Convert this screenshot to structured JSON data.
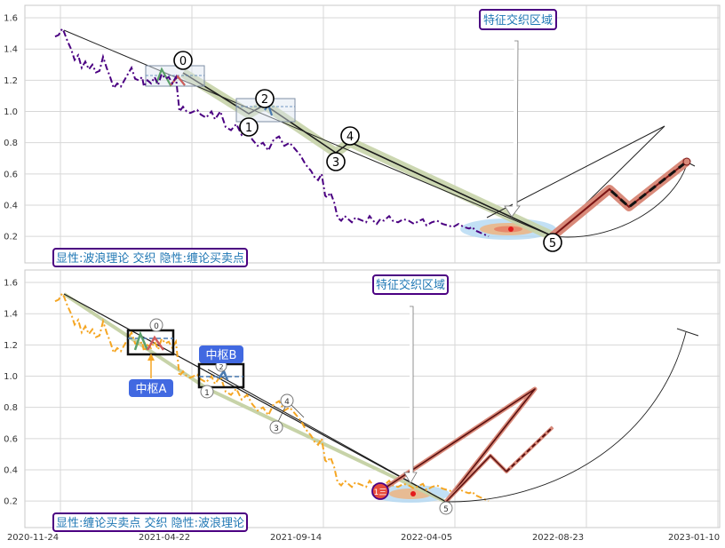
{
  "chart_data": [
    {
      "type": "line",
      "panel": "top",
      "x_ticks": [
        "2020-11-24",
        "2021-04-22",
        "2021-09-14",
        "2022-04-05",
        "2022-08-23",
        "2023-01-10"
      ],
      "y_ticks": [
        "0.2",
        "0.4",
        "0.6",
        "0.8",
        "1.0",
        "1.2",
        "1.4",
        "1.6"
      ],
      "ylim": [
        0.03,
        1.68
      ],
      "grid": true,
      "series": [
        {
          "color": "#4b0082",
          "style": "dash-dot",
          "x": [
            0,
            4,
            8,
            10,
            14,
            18,
            22,
            26,
            30,
            34,
            38,
            42,
            46,
            50,
            54,
            58,
            62,
            66,
            70,
            74,
            78,
            82,
            86,
            90,
            94,
            98,
            100,
            104,
            108,
            112,
            116,
            120,
            124,
            128,
            132,
            136,
            140,
            144,
            148,
            152,
            156,
            160,
            164,
            170,
            176,
            180,
            186,
            192,
            198,
            204,
            210,
            216,
            222,
            228,
            234,
            240,
            246,
            252,
            258,
            264,
            270,
            276,
            282,
            288,
            292,
            296,
            300,
            304,
            306,
            310,
            314,
            318,
            322,
            326,
            330,
            334,
            338,
            342,
            346,
            350,
            354,
            358,
            362,
            366,
            370,
            372,
            376,
            380,
            386,
            392,
            398,
            404,
            410,
            414,
            418,
            424,
            430,
            436,
            442,
            448,
            454,
            460,
            466,
            470,
            472,
            476,
            480,
            484,
            488
          ],
          "y": [
            1.48,
            1.49,
            1.53,
            1.51,
            1.45,
            1.4,
            1.33,
            1.36,
            1.28,
            1.32,
            1.27,
            1.3,
            1.25,
            1.26,
            1.35,
            1.28,
            1.22,
            1.15,
            1.18,
            1.16,
            1.2,
            1.24,
            1.28,
            1.21,
            1.2,
            1.22,
            1.16,
            1.2,
            1.18,
            1.22,
            1.17,
            1.24,
            1.21,
            1.22,
            1.18,
            1.22,
            1.0,
            1.03,
            1.0,
            0.99,
            1.0,
            1.01,
            0.98,
            0.96,
            1.0,
            0.95,
            1.0,
            0.9,
            0.88,
            0.92,
            0.85,
            0.88,
            0.82,
            0.78,
            0.8,
            0.75,
            0.82,
            0.84,
            0.78,
            0.8,
            0.76,
            0.72,
            0.66,
            0.62,
            0.58,
            0.56,
            0.6,
            0.46,
            0.45,
            0.48,
            0.42,
            0.32,
            0.3,
            0.33,
            0.31,
            0.29,
            0.32,
            0.31,
            0.3,
            0.29,
            0.33,
            0.3,
            0.28,
            0.31,
            0.3,
            0.31,
            0.33,
            0.3,
            0.29,
            0.31,
            0.3,
            0.28,
            0.3,
            0.31,
            0.27,
            0.29,
            0.3,
            0.28,
            0.27,
            0.26,
            0.28,
            0.26,
            0.25,
            0.26,
            0.24,
            0.23,
            0.22,
            0.21,
            0.2
          ]
        }
      ],
      "wave_labels": [
        "0",
        "1",
        "2",
        "3",
        "4",
        "5"
      ],
      "annotation_title": "特征交织区域",
      "footer": "显性:波浪理论 交织 隐性:缠论买卖点"
    },
    {
      "type": "line",
      "panel": "bottom",
      "x_ticks": [
        "2020-11-24",
        "2021-04-22",
        "2021-09-14",
        "2022-04-05",
        "2022-08-23",
        "2023-01-10"
      ],
      "y_ticks": [
        "0.2",
        "0.4",
        "0.6",
        "0.8",
        "1.0",
        "1.2",
        "1.4",
        "1.6"
      ],
      "ylim": [
        0.03,
        1.68
      ],
      "grid": true,
      "series": [
        {
          "color": "#f5a623",
          "style": "dash-dot",
          "x": [
            0,
            4,
            8,
            10,
            14,
            18,
            22,
            26,
            30,
            34,
            38,
            42,
            46,
            50,
            54,
            58,
            62,
            66,
            70,
            74,
            78,
            82,
            86,
            90,
            94,
            98,
            100,
            104,
            108,
            112,
            116,
            120,
            124,
            128,
            132,
            136,
            140,
            144,
            148,
            152,
            156,
            160,
            164,
            170,
            176,
            180,
            186,
            192,
            198,
            204,
            210,
            216,
            222,
            228,
            234,
            240,
            246,
            252,
            258,
            264,
            270,
            276,
            282,
            288,
            292,
            296,
            300,
            304,
            306,
            310,
            314,
            318,
            322,
            326,
            330,
            334,
            338,
            342,
            346,
            350,
            354,
            358,
            362,
            366,
            370,
            372,
            376,
            380,
            386,
            392,
            398,
            404,
            410,
            414,
            418,
            424,
            430,
            436,
            442,
            448,
            454,
            460,
            466,
            470,
            472,
            476,
            480,
            484,
            488
          ],
          "y": [
            1.48,
            1.49,
            1.53,
            1.51,
            1.45,
            1.4,
            1.33,
            1.36,
            1.28,
            1.32,
            1.27,
            1.3,
            1.25,
            1.26,
            1.35,
            1.28,
            1.22,
            1.15,
            1.18,
            1.16,
            1.2,
            1.24,
            1.28,
            1.21,
            1.2,
            1.22,
            1.16,
            1.2,
            1.18,
            1.22,
            1.17,
            1.24,
            1.21,
            1.22,
            1.18,
            1.22,
            1.0,
            1.03,
            1.0,
            0.99,
            1.0,
            1.01,
            0.98,
            0.96,
            1.0,
            0.95,
            1.0,
            0.9,
            0.88,
            0.92,
            0.85,
            0.88,
            0.82,
            0.78,
            0.8,
            0.75,
            0.82,
            0.84,
            0.78,
            0.8,
            0.76,
            0.72,
            0.66,
            0.62,
            0.58,
            0.56,
            0.6,
            0.46,
            0.45,
            0.48,
            0.42,
            0.32,
            0.3,
            0.33,
            0.31,
            0.29,
            0.32,
            0.31,
            0.3,
            0.29,
            0.33,
            0.3,
            0.28,
            0.31,
            0.3,
            0.31,
            0.33,
            0.3,
            0.29,
            0.31,
            0.3,
            0.28,
            0.3,
            0.31,
            0.27,
            0.29,
            0.3,
            0.28,
            0.27,
            0.26,
            0.28,
            0.26,
            0.25,
            0.26,
            0.24,
            0.23,
            0.22,
            0.21,
            0.2
          ]
        }
      ],
      "wave_labels": [
        "0",
        "1",
        "2",
        "3",
        "4",
        "5"
      ],
      "buy_point_label": "1三",
      "zhongshu_a": "中枢A",
      "zhongshu_b": "中枢B",
      "annotation_title": "特征交织区域",
      "footer": "显性:缠论买卖点 交织 隐性:波浪理论"
    }
  ]
}
